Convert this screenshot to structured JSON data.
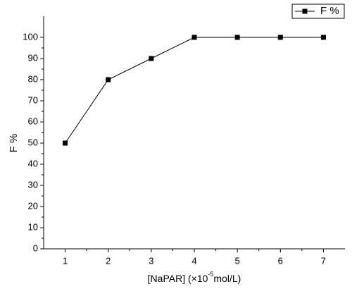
{
  "chart_data": {
    "type": "line",
    "x_label": {
      "text": "[NaPAR] (×10",
      "superscript": "-5",
      "suffix": "mol/L)"
    },
    "y_label": "F  %",
    "x": [
      1,
      2,
      3,
      4,
      5,
      6,
      7
    ],
    "series": [
      {
        "name": "F  %",
        "color": "#000000",
        "values": [
          50,
          80,
          90,
          100,
          100,
          100,
          100
        ]
      }
    ],
    "xlim": [
      0.5,
      7.5
    ],
    "xticks": [
      1,
      2,
      3,
      4,
      5,
      6,
      7
    ],
    "ylim": [
      0,
      110
    ],
    "yticks": [
      0,
      10,
      20,
      30,
      40,
      50,
      60,
      70,
      80,
      90,
      100
    ],
    "legend": "top-right",
    "grid": false
  }
}
